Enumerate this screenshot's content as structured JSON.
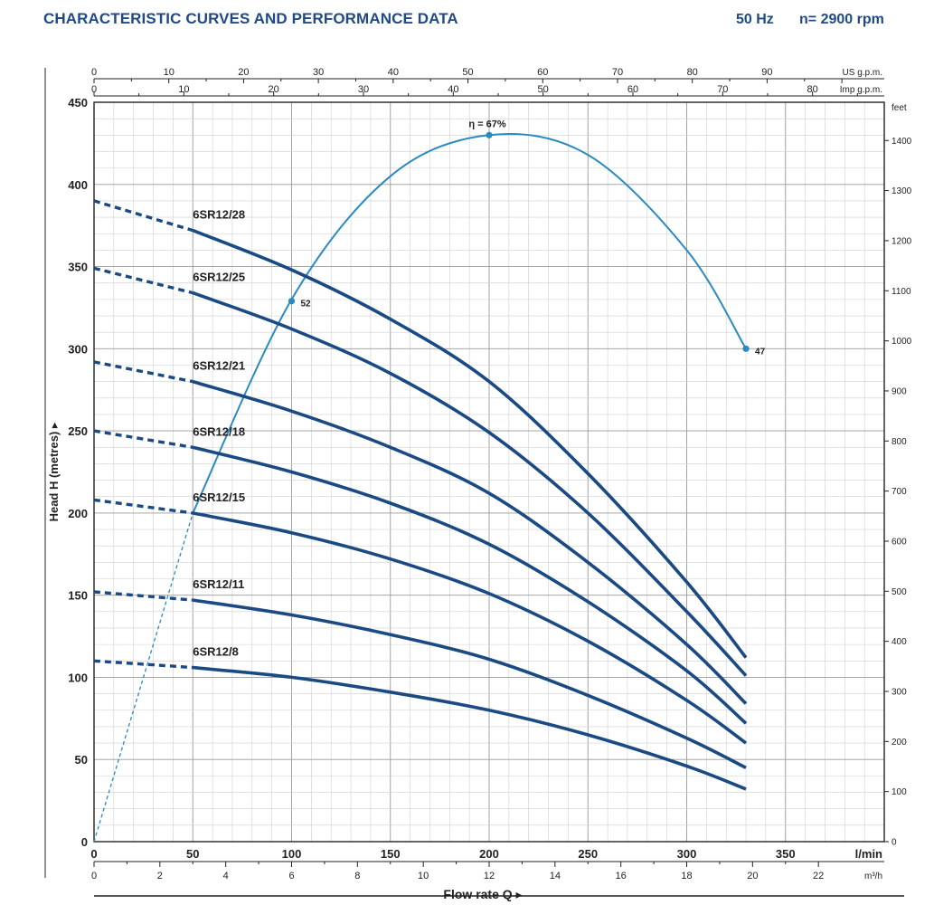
{
  "header": {
    "title": "CHARACTERISTIC CURVES AND PERFORMANCE DATA",
    "frequency": "50 Hz",
    "speed": "n= 2900 rpm"
  },
  "chart_data": {
    "type": "line",
    "xlabel": "Flow rate Q ▸",
    "ylabel": "Head H  (metres) ▸",
    "x_unit_label": "l/min",
    "x_m3h_unit_label": "m³/h",
    "us_gpm_unit_label": "US g.p.m.",
    "imp_gpm_unit_label": "Imp g.p.m.",
    "feet_unit_label": "feet",
    "xlim": [
      0,
      400
    ],
    "ylim": [
      0,
      450
    ],
    "grid": true,
    "x_ticks": [
      0,
      50,
      100,
      150,
      200,
      250,
      300,
      350
    ],
    "y_ticks": [
      0,
      50,
      100,
      150,
      200,
      250,
      300,
      350,
      400,
      450
    ],
    "m3h_ticks": [
      0,
      2,
      4,
      6,
      8,
      10,
      12,
      14,
      16,
      18,
      20,
      22
    ],
    "us_gpm_ticks": [
      0,
      10,
      20,
      30,
      40,
      50,
      60,
      70,
      80,
      90
    ],
    "imp_gpm_ticks": [
      0,
      10,
      20,
      30,
      40,
      50,
      60,
      70,
      80
    ],
    "feet_ticks": [
      0,
      100,
      200,
      300,
      400,
      500,
      600,
      700,
      800,
      900,
      1000,
      1100,
      1200,
      1300,
      1400
    ],
    "colors": {
      "pump_curve": "#1a4a84",
      "efficiency_curve": "#2a8ac2",
      "title": "#1f4a86"
    },
    "series": [
      {
        "name": "6SR12/28",
        "x": [
          0,
          50,
          100,
          150,
          200,
          250,
          300,
          330
        ],
        "y": [
          390,
          372,
          348,
          318,
          280,
          224,
          158,
          112
        ]
      },
      {
        "name": "6SR12/25",
        "x": [
          0,
          50,
          100,
          150,
          200,
          250,
          300,
          330
        ],
        "y": [
          349,
          334,
          312,
          285,
          249,
          200,
          140,
          101
        ]
      },
      {
        "name": "6SR12/21",
        "x": [
          0,
          50,
          100,
          150,
          200,
          250,
          300,
          330
        ],
        "y": [
          292,
          280,
          262,
          240,
          212,
          170,
          120,
          84
        ]
      },
      {
        "name": "6SR12/18",
        "x": [
          0,
          50,
          100,
          150,
          200,
          250,
          300,
          330
        ],
        "y": [
          250,
          240,
          225,
          206,
          181,
          146,
          104,
          72
        ]
      },
      {
        "name": "6SR12/15",
        "x": [
          0,
          50,
          100,
          150,
          200,
          250,
          300,
          330
        ],
        "y": [
          208,
          200,
          188,
          172,
          151,
          122,
          86,
          60
        ]
      },
      {
        "name": "6SR12/11",
        "x": [
          0,
          50,
          100,
          150,
          200,
          250,
          300,
          330
        ],
        "y": [
          152,
          147,
          138,
          126,
          111,
          89,
          63,
          45
        ]
      },
      {
        "name": "6SR12/8",
        "x": [
          0,
          50,
          100,
          150,
          200,
          250,
          300,
          330
        ],
        "y": [
          110,
          106,
          100,
          91,
          80,
          65,
          46,
          32
        ]
      }
    ],
    "efficiency": {
      "label": "η = 67%",
      "x": [
        0,
        50,
        100,
        150,
        200,
        250,
        300,
        330
      ],
      "y": [
        0,
        200,
        330,
        405,
        430,
        418,
        360,
        300
      ],
      "points": [
        {
          "x": 100,
          "y": 329,
          "label": "52"
        },
        {
          "x": 200,
          "y": 430,
          "label": ""
        },
        {
          "x": 330,
          "y": 300,
          "label": "47"
        }
      ]
    }
  }
}
